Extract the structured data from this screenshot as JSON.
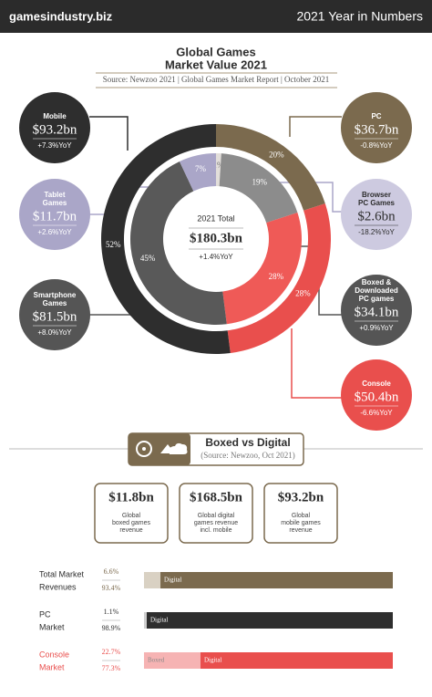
{
  "header": {
    "site": "gamesindustry.biz",
    "title": "2021 Year in Numbers"
  },
  "chart_data": [
    {
      "type": "donut",
      "title": [
        "Global Games",
        "Market Value 2021"
      ],
      "source": "Source: Newzoo 2021 | Global Games Market Report | October 2021",
      "center": {
        "label": "2021 Total",
        "value": "$180.3bn",
        "change": "+1.4%YoY"
      },
      "rings": [
        {
          "values": [
            20,
            28,
            52
          ],
          "value_labels": [
            "20%",
            "28%",
            "52%"
          ],
          "colors": [
            "#7b6a4e",
            "#e94f4d",
            "#2e2e2e"
          ]
        },
        {
          "values": [
            1,
            19,
            28,
            45,
            7
          ],
          "value_labels": [
            "1%",
            "19%",
            "28%",
            "45%",
            "7%"
          ],
          "colors": [
            "#e2deda",
            "#8c8c8c",
            "#ef5a57",
            "#595959",
            "#aaa6c8"
          ]
        }
      ]
    },
    {
      "type": "stacked-bar-h",
      "categories": [
        [
          "Total Market",
          "Revenues"
        ],
        [
          "PC",
          "Market"
        ],
        [
          "Console",
          "Market"
        ]
      ],
      "category_colors": [
        "#2e2e2e",
        "#2e2e2e",
        "#e94f4d"
      ],
      "xlim": [
        0,
        100
      ],
      "series": [
        {
          "name": "Boxed",
          "values": [
            6.6,
            1.1,
            22.7
          ],
          "value_labels": [
            "6.6%",
            "1.1%",
            "22.7%"
          ],
          "colors": [
            "#d9d1c3",
            "#cfcfcf",
            "#f6b3b3"
          ]
        },
        {
          "name": "Digital",
          "values": [
            93.4,
            98.9,
            77.3
          ],
          "value_labels": [
            "93.4%",
            "98.9%",
            "77.3%"
          ],
          "colors": [
            "#7b6a4e",
            "#2e2e2e",
            "#e94f4d"
          ]
        }
      ]
    }
  ],
  "callouts": [
    {
      "label": [
        "Mobile"
      ],
      "value": "$93.2bn",
      "change": "+7.3%YoY",
      "color": "#2e2e2e",
      "text_color": "#ffffff"
    },
    {
      "label": [
        "Tablet",
        "Games"
      ],
      "value": "$11.7bn",
      "change": "+2.6%YoY",
      "color": "#aaa6c8",
      "text_color": "#ffffff"
    },
    {
      "label": [
        "Smartphone",
        "Games"
      ],
      "value": "$81.5bn",
      "change": "+8.0%YoY",
      "color": "#555555",
      "text_color": "#ffffff"
    },
    {
      "label": [
        "PC"
      ],
      "value": "$36.7bn",
      "change": "-0.8%YoY",
      "color": "#7b6a4e",
      "text_color": "#ffffff"
    },
    {
      "label": [
        "Browser",
        "PC Games"
      ],
      "value": "$2.6bn",
      "change": "-18.2%YoY",
      "color": "#cdcae0",
      "text_color": "#2e2e2e"
    },
    {
      "label": [
        "Boxed &",
        "Downloaded",
        "PC games"
      ],
      "value": "$34.1bn",
      "change": "+0.9%YoY",
      "color": "#555555",
      "text_color": "#ffffff"
    },
    {
      "label": [
        "Console"
      ],
      "value": "$50.4bn",
      "change": "-6.6%YoY",
      "color": "#e94f4d",
      "text_color": "#ffffff"
    }
  ],
  "boxed_digital": {
    "title": "Boxed vs Digital",
    "source": "(Source: Newzoo, Oct 2021)",
    "stats": [
      {
        "value": "$11.8bn",
        "label": [
          "Global",
          "boxed games",
          "revenue"
        ]
      },
      {
        "value": "$168.5bn",
        "label": [
          "Global digital",
          "games  revenue",
          "incl. mobile"
        ]
      },
      {
        "value": "$93.2bn",
        "label": [
          "Global",
          "mobile games",
          "revenue"
        ]
      }
    ]
  }
}
